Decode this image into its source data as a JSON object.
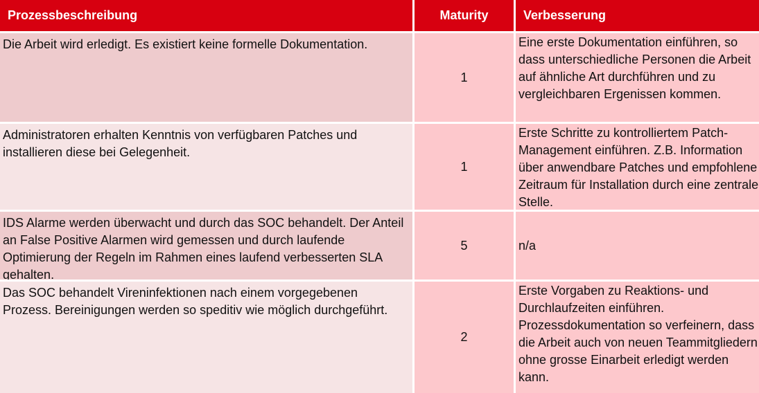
{
  "table": {
    "headers": {
      "description": "Prozessbeschreibung",
      "maturity": "Maturity",
      "improvement": "Verbesserung"
    },
    "rows": [
      {
        "description": "Die Arbeit wird erledigt. Es existiert keine formelle Dokumentation.",
        "maturity": "1",
        "improvement": "Eine erste Dokumentation einführen, so dass unterschiedliche Personen die Arbeit auf ähnliche Art durchführen und zu vergleichbaren Ergenissen kommen."
      },
      {
        "description": "Administratoren erhalten Kenntnis von verfügbaren Patches und installieren diese bei Gelegenheit.",
        "maturity": "1",
        "improvement": "Erste Schritte zu kontrolliertem Patch-Management einführen. Z.B. Information über anwendbare Patches und empfohlene Zeitraum für Installation durch eine zentrale Stelle."
      },
      {
        "description": "IDS Alarme werden überwacht und durch das SOC behandelt. Der Anteil an False Positive Alarmen wird gemessen und durch laufende Optimierung der Regeln im Rahmen eines laufend verbesserten SLA gehalten.",
        "maturity": "5",
        "improvement": "n/a"
      },
      {
        "description": "Das SOC behandelt Vireninfektionen nach einem vorgegebenen Prozess. Bereinigungen werden so speditiv wie möglich durchgeführt.",
        "maturity": "2",
        "improvement": "Erste Vorgaben zu Reaktions- und Durchlaufzeiten einführen. Prozessdokumentation so verfeinern, dass die Arbeit auch von neuen Teammitgliedern ohne grosse Einarbeit erledigt werden kann."
      }
    ]
  }
}
